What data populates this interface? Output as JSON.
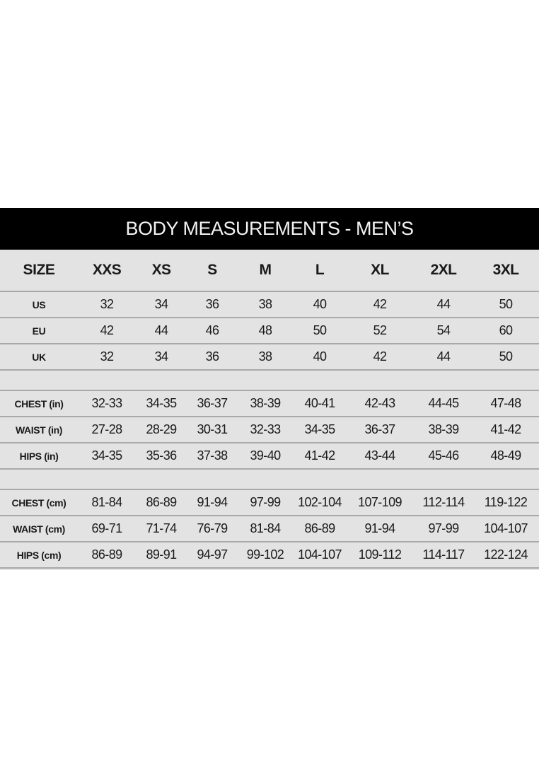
{
  "title": "BODY MEASUREMENTS - MEN’S",
  "header": {
    "label": "SIZE",
    "sizes": [
      "XXS",
      "XS",
      "S",
      "M",
      "L",
      "XL",
      "2XL",
      "3XL"
    ]
  },
  "groups": [
    {
      "rows": [
        {
          "label": "US",
          "values": [
            "32",
            "34",
            "36",
            "38",
            "40",
            "42",
            "44",
            "50"
          ]
        },
        {
          "label": "EU",
          "values": [
            "42",
            "44",
            "46",
            "48",
            "50",
            "52",
            "54",
            "60"
          ]
        },
        {
          "label": "UK",
          "values": [
            "32",
            "34",
            "36",
            "38",
            "40",
            "42",
            "44",
            "50"
          ]
        }
      ]
    },
    {
      "rows": [
        {
          "label": "CHEST (in)",
          "values": [
            "32-33",
            "34-35",
            "36-37",
            "38-39",
            "40-41",
            "42-43",
            "44-45",
            "47-48"
          ]
        },
        {
          "label": "WAIST (in)",
          "values": [
            "27-28",
            "28-29",
            "30-31",
            "32-33",
            "34-35",
            "36-37",
            "38-39",
            "41-42"
          ]
        },
        {
          "label": "HIPS (in)",
          "values": [
            "34-35",
            "35-36",
            "37-38",
            "39-40",
            "41-42",
            "43-44",
            "45-46",
            "48-49"
          ]
        }
      ]
    },
    {
      "rows": [
        {
          "label": "CHEST (cm)",
          "values": [
            "81-84",
            "86-89",
            "91-94",
            "97-99",
            "102-104",
            "107-109",
            "112-114",
            "119-122"
          ]
        },
        {
          "label": "WAIST (cm)",
          "values": [
            "69-71",
            "71-74",
            "76-79",
            "81-84",
            "86-89",
            "91-94",
            "97-99",
            "104-107"
          ]
        },
        {
          "label": "HIPS (cm)",
          "values": [
            "86-89",
            "89-91",
            "94-97",
            "99-102",
            "104-107",
            "109-112",
            "114-117",
            "122-124"
          ]
        }
      ]
    }
  ],
  "colors": {
    "title_bg": "#000000",
    "table_bg": "#e3e3e3",
    "rule": "#a9a9a9"
  }
}
